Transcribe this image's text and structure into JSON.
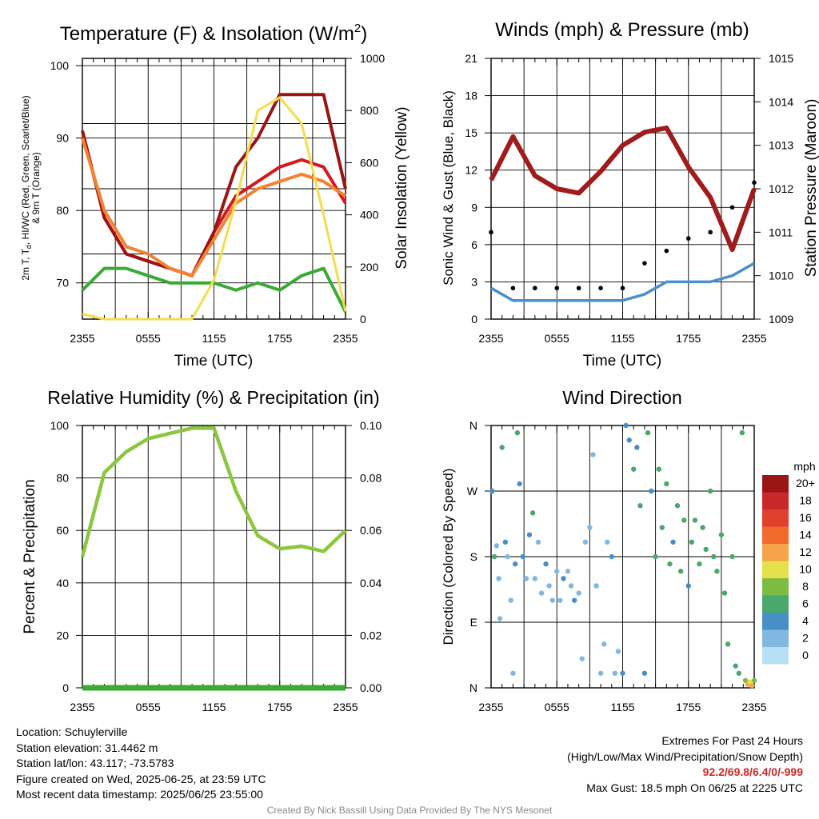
{
  "colors": {
    "temp_2m": "#d7191c",
    "dewpoint": "#3aaa35",
    "heat_index": "#9b1515",
    "temp_9m": "#f58231",
    "insolation": "#f5dd4c",
    "pressure": "#a01c1c",
    "wind": "#4a90cc",
    "gust": "#000000",
    "humidity": "#8cc63f",
    "precip": "#3aaa35"
  },
  "x_ticks": [
    "2355",
    "0555",
    "1155",
    "1755",
    "2355"
  ],
  "panels": {
    "temperature": {
      "title_prefix": "Temperature (F) & Insolation (W/m",
      "title_sup": "2",
      "title_suffix": ")",
      "xlabel": "Time (UTC)",
      "ylabel_left_line1": "2m T, T",
      "ylabel_left_sub": "d",
      "ylabel_left_rest": ", HI/WC (Red, Green, Scarlet/Blue)",
      "ylabel_left_line2": "& 9m T (Orange)",
      "ylabel_right": "Solar Insolation (Yellow)",
      "y_ticks": [
        "70",
        "80",
        "90",
        "100"
      ],
      "y2_ticks": [
        "0",
        "200",
        "400",
        "600",
        "800",
        "1000"
      ]
    },
    "winds": {
      "title": "Winds (mph) & Pressure (mb)",
      "xlabel": "Time (UTC)",
      "ylabel_left": "Sonic Wind & Gust (Blue, Black)",
      "ylabel_right": "Station Pressure (Maroon)",
      "y_ticks": [
        "0",
        "3",
        "6",
        "9",
        "12",
        "15",
        "18",
        "21"
      ],
      "y2_ticks": [
        "1009",
        "1010",
        "1011",
        "1012",
        "1013",
        "1014",
        "1015"
      ]
    },
    "humidity": {
      "title": "Relative Humidity (%) & Precipitation (in)",
      "ylabel_left": "Percent & Precipitation",
      "y_ticks": [
        "0",
        "20",
        "40",
        "60",
        "80",
        "100"
      ],
      "y2_ticks": [
        "0.00",
        "0.02",
        "0.04",
        "0.06",
        "0.08",
        "0.10"
      ]
    },
    "direction": {
      "title": "Wind Direction",
      "ylabel_left": "Direction (Colored By Speed)",
      "y_ticks": [
        "N",
        "E",
        "S",
        "W",
        "N"
      ],
      "legend_title": "mph",
      "legend": [
        {
          "label": "20+",
          "color": "#9b1515"
        },
        {
          "label": "18",
          "color": "#c8282a"
        },
        {
          "label": "16",
          "color": "#e0402e"
        },
        {
          "label": "14",
          "color": "#f26a2e"
        },
        {
          "label": "12",
          "color": "#f7a34a"
        },
        {
          "label": "10",
          "color": "#e6e04a"
        },
        {
          "label": "8",
          "color": "#7cbc45"
        },
        {
          "label": "6",
          "color": "#4aa86a"
        },
        {
          "label": "4",
          "color": "#4a8ec6"
        },
        {
          "label": "2",
          "color": "#80b8e2"
        },
        {
          "label": "0",
          "color": "#b8e0f4"
        }
      ]
    }
  },
  "chart_data": [
    {
      "type": "line",
      "title": "Temperature (F) & Insolation (W/m2)",
      "xlabel": "Time (UTC)",
      "ylim": [
        65,
        101
      ],
      "y2lim": [
        0,
        1000
      ],
      "x": [
        0,
        2,
        4,
        6,
        8,
        10,
        12,
        14,
        16,
        18,
        20,
        22,
        24
      ],
      "series": [
        {
          "key": "temp_2m",
          "values": [
            91,
            79,
            74,
            73,
            72,
            71,
            77,
            82,
            84,
            86,
            87,
            86,
            81
          ]
        },
        {
          "key": "dewpoint",
          "values": [
            69,
            72,
            72,
            71,
            70,
            70,
            70,
            69,
            70,
            69,
            71,
            72,
            66
          ]
        },
        {
          "key": "heat_index",
          "values": [
            91,
            79,
            74,
            73,
            72,
            71,
            77,
            86,
            90,
            96,
            96,
            96,
            83
          ]
        },
        {
          "key": "temp_9m",
          "values": [
            90,
            80,
            75,
            74,
            72,
            71,
            76,
            81,
            83,
            84,
            85,
            84,
            82
          ]
        },
        {
          "key": "insolation",
          "axis": "right",
          "values": [
            20,
            0,
            0,
            0,
            0,
            0,
            150,
            450,
            800,
            850,
            750,
            400,
            30
          ]
        }
      ]
    },
    {
      "type": "line",
      "title": "Winds (mph) & Pressure (mb)",
      "xlabel": "Time (UTC)",
      "ylim": [
        0,
        21
      ],
      "y2lim": [
        1009,
        1015
      ],
      "x": [
        0,
        2,
        4,
        6,
        8,
        10,
        12,
        14,
        16,
        18,
        20,
        22,
        24
      ],
      "series": [
        {
          "key": "pressure",
          "axis": "right",
          "values": [
            1012.2,
            1013.2,
            1012.3,
            1012.0,
            1011.9,
            1012.4,
            1013.0,
            1013.3,
            1013.4,
            1012.5,
            1011.8,
            1010.6,
            1012.0
          ]
        },
        {
          "key": "wind",
          "values": [
            2.5,
            1.5,
            1.5,
            1.5,
            1.5,
            1.5,
            1.5,
            2.0,
            3.0,
            3.0,
            3.0,
            3.5,
            4.5
          ]
        },
        {
          "key": "gust",
          "type": "scatter",
          "values": [
            7.0,
            2.5,
            2.5,
            2.5,
            2.5,
            2.5,
            2.5,
            4.5,
            5.5,
            6.5,
            7.0,
            9.0,
            11.0
          ]
        }
      ]
    },
    {
      "type": "line",
      "title": "Relative Humidity (%) & Precipitation (in)",
      "ylim": [
        0,
        100
      ],
      "y2lim": [
        0,
        0.1
      ],
      "x": [
        0,
        2,
        4,
        6,
        8,
        10,
        12,
        14,
        16,
        18,
        20,
        22,
        24
      ],
      "series": [
        {
          "key": "humidity",
          "values": [
            50,
            82,
            90,
            95,
            97,
            99,
            99,
            75,
            58,
            53,
            54,
            52,
            60
          ]
        },
        {
          "key": "precip",
          "axis": "right",
          "values": [
            0,
            0,
            0,
            0,
            0,
            0,
            0,
            0,
            0,
            0,
            0,
            0,
            0
          ]
        }
      ]
    },
    {
      "type": "scatter",
      "title": "Wind Direction",
      "ylim": [
        0,
        360
      ],
      "points": [
        [
          0.1,
          270,
          2
        ],
        [
          0.3,
          180,
          3
        ],
        [
          0.5,
          195,
          1
        ],
        [
          0.7,
          150,
          1
        ],
        [
          0.8,
          95,
          1
        ],
        [
          1.0,
          330,
          3
        ],
        [
          1.3,
          200,
          2
        ],
        [
          1.5,
          180,
          1
        ],
        [
          1.8,
          120,
          1
        ],
        [
          2.0,
          20,
          1
        ],
        [
          2.2,
          170,
          2
        ],
        [
          2.4,
          350,
          3
        ],
        [
          2.6,
          280,
          2
        ],
        [
          2.9,
          180,
          2
        ],
        [
          3.2,
          150,
          1
        ],
        [
          3.5,
          210,
          2
        ],
        [
          3.8,
          240,
          3
        ],
        [
          4.0,
          150,
          1
        ],
        [
          4.3,
          200,
          1
        ],
        [
          4.6,
          130,
          1
        ],
        [
          5.0,
          170,
          2
        ],
        [
          5.3,
          140,
          1
        ],
        [
          5.6,
          120,
          1
        ],
        [
          6.0,
          160,
          1
        ],
        [
          6.3,
          120,
          1
        ],
        [
          6.6,
          150,
          2
        ],
        [
          7.0,
          160,
          1
        ],
        [
          7.3,
          140,
          1
        ],
        [
          7.6,
          120,
          2
        ],
        [
          8.0,
          130,
          1
        ],
        [
          8.3,
          40,
          1
        ],
        [
          8.6,
          200,
          1
        ],
        [
          9.0,
          220,
          1
        ],
        [
          9.3,
          320,
          1
        ],
        [
          9.6,
          140,
          1
        ],
        [
          10.0,
          20,
          1
        ],
        [
          10.3,
          60,
          1
        ],
        [
          10.6,
          200,
          1
        ],
        [
          11.0,
          180,
          2
        ],
        [
          11.3,
          20,
          1
        ],
        [
          11.6,
          50,
          1
        ],
        [
          12.0,
          20,
          2
        ],
        [
          12.3,
          360,
          2
        ],
        [
          12.6,
          340,
          2
        ],
        [
          13.0,
          300,
          3
        ],
        [
          13.3,
          330,
          2
        ],
        [
          13.6,
          250,
          3
        ],
        [
          14.0,
          20,
          2
        ],
        [
          14.3,
          350,
          3
        ],
        [
          14.6,
          270,
          2
        ],
        [
          15.0,
          180,
          3
        ],
        [
          15.3,
          300,
          3
        ],
        [
          15.6,
          220,
          3
        ],
        [
          16.0,
          280,
          3
        ],
        [
          16.3,
          170,
          3
        ],
        [
          16.6,
          200,
          2
        ],
        [
          17.0,
          250,
          3
        ],
        [
          17.3,
          160,
          3
        ],
        [
          17.6,
          230,
          3
        ],
        [
          18.0,
          140,
          2
        ],
        [
          18.3,
          200,
          3
        ],
        [
          18.6,
          230,
          3
        ],
        [
          19.0,
          170,
          3
        ],
        [
          19.3,
          220,
          3
        ],
        [
          19.6,
          190,
          3
        ],
        [
          20.0,
          270,
          3
        ],
        [
          20.3,
          180,
          3
        ],
        [
          20.6,
          160,
          3
        ],
        [
          21.0,
          210,
          3
        ],
        [
          21.3,
          130,
          3
        ],
        [
          21.6,
          60,
          3
        ],
        [
          22.0,
          180,
          3
        ],
        [
          22.3,
          30,
          3
        ],
        [
          22.6,
          20,
          3
        ],
        [
          22.9,
          350,
          3
        ],
        [
          23.2,
          10,
          4
        ],
        [
          23.4,
          5,
          6
        ],
        [
          23.6,
          8,
          5
        ],
        [
          23.8,
          3,
          6
        ],
        [
          24.0,
          10,
          4
        ]
      ]
    }
  ],
  "info": {
    "location": "Location: Schuylerville",
    "elevation": "Station elevation: 31.4462 m",
    "latlon": "Station lat/lon: 43.117; -73.5783",
    "created": "Figure created on Wed, 2025-06-25, at 23:59 UTC",
    "recent": "Most recent data timestamp: 2025/06/25 23:55:00"
  },
  "extremes": {
    "title": "Extremes For Past 24 Hours",
    "subtitle": "(High/Low/Max Wind/Precipitation/Snow Depth)",
    "values": "92.2/69.8/6.4/0/-999",
    "max_gust": "Max Gust: 18.5 mph On 06/25 at 2225 UTC"
  },
  "credit": "Created By Nick Bassill Using Data Provided By The NYS Mesonet"
}
